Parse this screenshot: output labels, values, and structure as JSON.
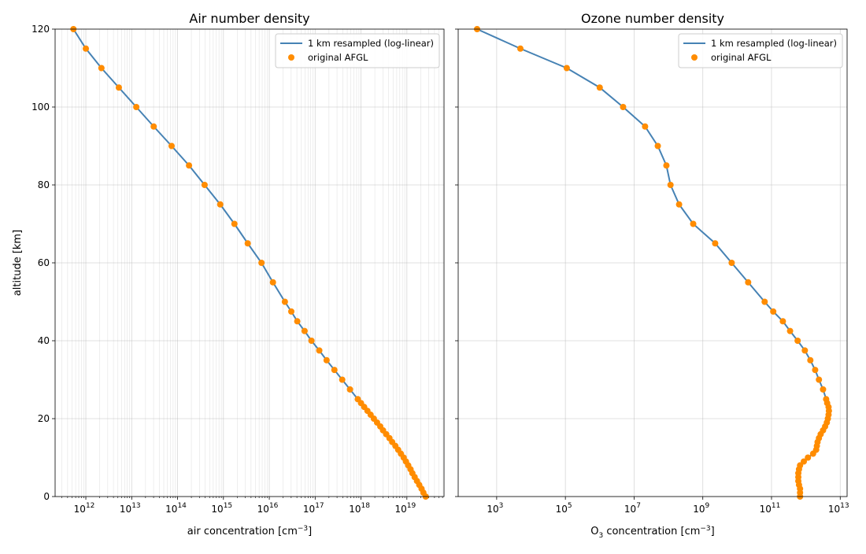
{
  "chart_data": [
    {
      "type": "line",
      "title": "Air number density",
      "xlabel": "air concentration [cm$^{-3}$]",
      "xlabel_main": "air concentration [cm",
      "xlabel_sup": "−3",
      "xlabel_end": "]",
      "ylabel": "altitude [km]",
      "xscale": "log",
      "xlim_log10": [
        11.33,
        19.81
      ],
      "ylim": [
        0,
        120
      ],
      "xticks_exp": [
        12,
        13,
        14,
        15,
        16,
        17,
        18,
        19
      ],
      "yticks": [
        0,
        20,
        40,
        60,
        80,
        100,
        120
      ],
      "minor_grid": true,
      "grid": true,
      "legend_position": "top-right",
      "series": [
        {
          "name": "1 km resampled (log-linear)",
          "kind": "line",
          "color": "#4682b4"
        },
        {
          "name": "original AFGL",
          "kind": "markers",
          "color": "#ff8c00"
        }
      ],
      "altitude_km": [
        0,
        1,
        2,
        3,
        4,
        5,
        6,
        7,
        8,
        9,
        10,
        11,
        12,
        13,
        14,
        15,
        16,
        17,
        18,
        19,
        20,
        21,
        22,
        23,
        24,
        25,
        27.5,
        30,
        32.5,
        35,
        37.5,
        40,
        42.5,
        45,
        47.5,
        50,
        55,
        60,
        65,
        70,
        75,
        80,
        85,
        90,
        95,
        100,
        105,
        110,
        115,
        120
      ],
      "log10_concentration": [
        19.41,
        19.36,
        19.32,
        19.27,
        19.22,
        19.17,
        19.12,
        19.08,
        19.03,
        18.98,
        18.93,
        18.87,
        18.81,
        18.75,
        18.68,
        18.62,
        18.55,
        18.48,
        18.42,
        18.35,
        18.28,
        18.21,
        18.14,
        18.07,
        18.0,
        17.93,
        17.76,
        17.59,
        17.42,
        17.25,
        17.09,
        16.92,
        16.77,
        16.61,
        16.48,
        16.34,
        16.08,
        15.83,
        15.53,
        15.24,
        14.93,
        14.59,
        14.25,
        13.87,
        13.48,
        13.1,
        12.72,
        12.34,
        12.0,
        11.73
      ]
    },
    {
      "type": "line",
      "title": "Ozone number density",
      "xlabel_main": "O",
      "xlabel_sub": "3",
      "xlabel_mid": " concentration [cm",
      "xlabel_sup": "−3",
      "xlabel_end": "]",
      "xscale": "log",
      "xlim_log10": [
        1.88,
        13.2
      ],
      "ylim": [
        0,
        120
      ],
      "xticks_exp": [
        3,
        5,
        7,
        9,
        11,
        13
      ],
      "yticks": [
        0,
        20,
        40,
        60,
        80,
        100,
        120
      ],
      "minor_grid": false,
      "grid": true,
      "legend_position": "top-right",
      "series": [
        {
          "name": "1 km resampled (log-linear)",
          "kind": "line",
          "color": "#4682b4"
        },
        {
          "name": "original AFGL",
          "kind": "markers",
          "color": "#ff8c00"
        }
      ],
      "altitude_km": [
        0,
        1,
        2,
        3,
        4,
        5,
        6,
        7,
        8,
        9,
        10,
        11,
        12,
        13,
        14,
        15,
        16,
        17,
        18,
        19,
        20,
        21,
        22,
        23,
        24,
        25,
        27.5,
        30,
        32.5,
        35,
        37.5,
        40,
        42.5,
        45,
        47.5,
        50,
        55,
        60,
        65,
        70,
        75,
        80,
        85,
        90,
        95,
        100,
        105,
        110,
        115,
        120
      ],
      "log10_concentration": [
        11.83,
        11.83,
        11.83,
        11.8,
        11.78,
        11.78,
        11.78,
        11.8,
        11.83,
        11.94,
        12.06,
        12.21,
        12.3,
        12.32,
        12.34,
        12.38,
        12.43,
        12.5,
        12.56,
        12.61,
        12.64,
        12.66,
        12.67,
        12.66,
        12.62,
        12.59,
        12.5,
        12.38,
        12.27,
        12.13,
        11.97,
        11.76,
        11.54,
        11.33,
        11.05,
        10.8,
        10.32,
        9.84,
        9.36,
        8.72,
        8.31,
        8.06,
        7.94,
        7.69,
        7.32,
        6.68,
        6.0,
        5.04,
        3.69,
        2.43
      ]
    }
  ]
}
